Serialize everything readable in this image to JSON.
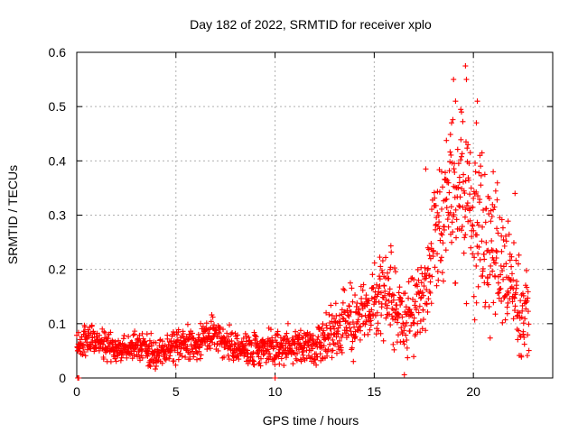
{
  "chart_data": {
    "type": "scatter",
    "title": "Day 182 of 2022, SRMTID for receiver xplo",
    "xlabel": "GPS time / hours",
    "ylabel": "SRMTID / TECUs",
    "xlim": [
      0,
      24
    ],
    "ylim": [
      0,
      0.6
    ],
    "xticks": [
      0,
      5,
      10,
      15,
      20
    ],
    "yticks": [
      0,
      0.1,
      0.2,
      0.3,
      0.4,
      0.5,
      0.6
    ],
    "xtick_labels": [
      "0",
      "5",
      "10",
      "15",
      "20"
    ],
    "ytick_labels": [
      "0",
      "0.1",
      "0.2",
      "0.3",
      "0.4",
      "0.5",
      "0.6"
    ],
    "grid": true,
    "marker": "+",
    "color": "#ff0000",
    "series": [
      {
        "name": "SRMTID",
        "note": "dense red plus-marker scatter; points sampled along trend read from figure",
        "trend": [
          {
            "x": 0.0,
            "y": 0.06
          },
          {
            "x": 1.0,
            "y": 0.07
          },
          {
            "x": 2.0,
            "y": 0.055
          },
          {
            "x": 3.0,
            "y": 0.06
          },
          {
            "x": 4.0,
            "y": 0.045
          },
          {
            "x": 5.0,
            "y": 0.06
          },
          {
            "x": 6.0,
            "y": 0.065
          },
          {
            "x": 7.0,
            "y": 0.08
          },
          {
            "x": 8.0,
            "y": 0.055
          },
          {
            "x": 9.0,
            "y": 0.05
          },
          {
            "x": 10.0,
            "y": 0.055
          },
          {
            "x": 11.0,
            "y": 0.06
          },
          {
            "x": 12.0,
            "y": 0.06
          },
          {
            "x": 13.0,
            "y": 0.09
          },
          {
            "x": 14.0,
            "y": 0.1
          },
          {
            "x": 15.0,
            "y": 0.14
          },
          {
            "x": 15.5,
            "y": 0.16
          },
          {
            "x": 16.5,
            "y": 0.1
          },
          {
            "x": 17.5,
            "y": 0.15
          },
          {
            "x": 18.0,
            "y": 0.26
          },
          {
            "x": 18.8,
            "y": 0.32
          },
          {
            "x": 19.5,
            "y": 0.33
          },
          {
            "x": 20.2,
            "y": 0.28
          },
          {
            "x": 21.0,
            "y": 0.24
          },
          {
            "x": 22.0,
            "y": 0.18
          },
          {
            "x": 22.8,
            "y": 0.1
          }
        ],
        "spread": [
          {
            "x": 0.0,
            "s": 0.015
          },
          {
            "x": 12.0,
            "s": 0.02
          },
          {
            "x": 13.0,
            "s": 0.035
          },
          {
            "x": 15.5,
            "s": 0.04
          },
          {
            "x": 17.5,
            "s": 0.05
          },
          {
            "x": 19.5,
            "s": 0.1
          },
          {
            "x": 22.8,
            "s": 0.05
          }
        ],
        "peaks": [
          {
            "x": 19.6,
            "y": 0.575
          },
          {
            "x": 19.65,
            "y": 0.55
          },
          {
            "x": 19.0,
            "y": 0.55
          },
          {
            "x": 19.1,
            "y": 0.51
          },
          {
            "x": 20.2,
            "y": 0.51
          },
          {
            "x": 20.15,
            "y": 0.47
          },
          {
            "x": 19.4,
            "y": 0.49
          },
          {
            "x": 18.9,
            "y": 0.47
          },
          {
            "x": 17.6,
            "y": 0.385
          },
          {
            "x": 18.4,
            "y": 0.38
          },
          {
            "x": 21.0,
            "y": 0.38
          },
          {
            "x": 22.1,
            "y": 0.34
          },
          {
            "x": 0.1,
            "y": 0.0
          },
          {
            "x": 10.0,
            "y": 0.0
          },
          {
            "x": 0.05,
            "y": 0.0
          }
        ]
      }
    ]
  }
}
